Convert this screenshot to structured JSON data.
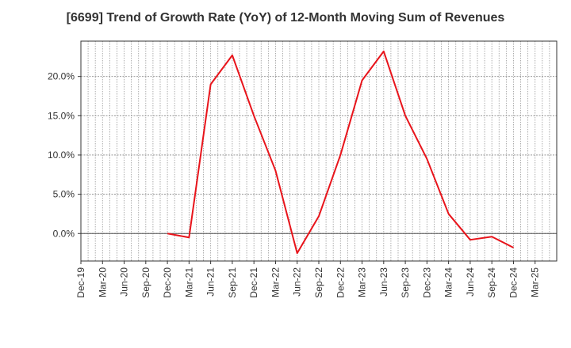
{
  "chart_data": {
    "type": "line",
    "title": "[6699]  Trend of Growth Rate (YoY) of 12-Month Moving Sum of Revenues",
    "xlabel": "",
    "ylabel": "",
    "x_ticks": [
      "Dec-19",
      "Mar-20",
      "Jun-20",
      "Sep-20",
      "Dec-20",
      "Mar-21",
      "Jun-21",
      "Sep-21",
      "Dec-21",
      "Mar-22",
      "Jun-22",
      "Sep-22",
      "Dec-22",
      "Mar-23",
      "Jun-23",
      "Sep-23",
      "Dec-23",
      "Mar-24",
      "Jun-24",
      "Sep-24",
      "Dec-24",
      "Mar-25"
    ],
    "y_ticks": [
      "0.0%",
      "5.0%",
      "10.0%",
      "15.0%",
      "20.0%"
    ],
    "y_tick_values": [
      0,
      5,
      10,
      15,
      20
    ],
    "ylim": [
      -3.5,
      24.5
    ],
    "grid": true,
    "series": [
      {
        "color": "#e8141b",
        "x": [
          "Dec-20",
          "Mar-21",
          "Jun-21",
          "Sep-21",
          "Dec-21",
          "Mar-22",
          "Jun-22",
          "Sep-22",
          "Dec-22",
          "Mar-23",
          "Jun-23",
          "Sep-23",
          "Dec-23",
          "Mar-24",
          "Jun-24",
          "Sep-24",
          "Dec-24"
        ],
        "values": [
          0.0,
          -0.5,
          19.0,
          22.7,
          15.0,
          8.0,
          -2.5,
          2.2,
          10.0,
          19.5,
          23.2,
          15.0,
          9.5,
          2.5,
          -0.8,
          -0.4,
          -1.8
        ]
      }
    ]
  }
}
